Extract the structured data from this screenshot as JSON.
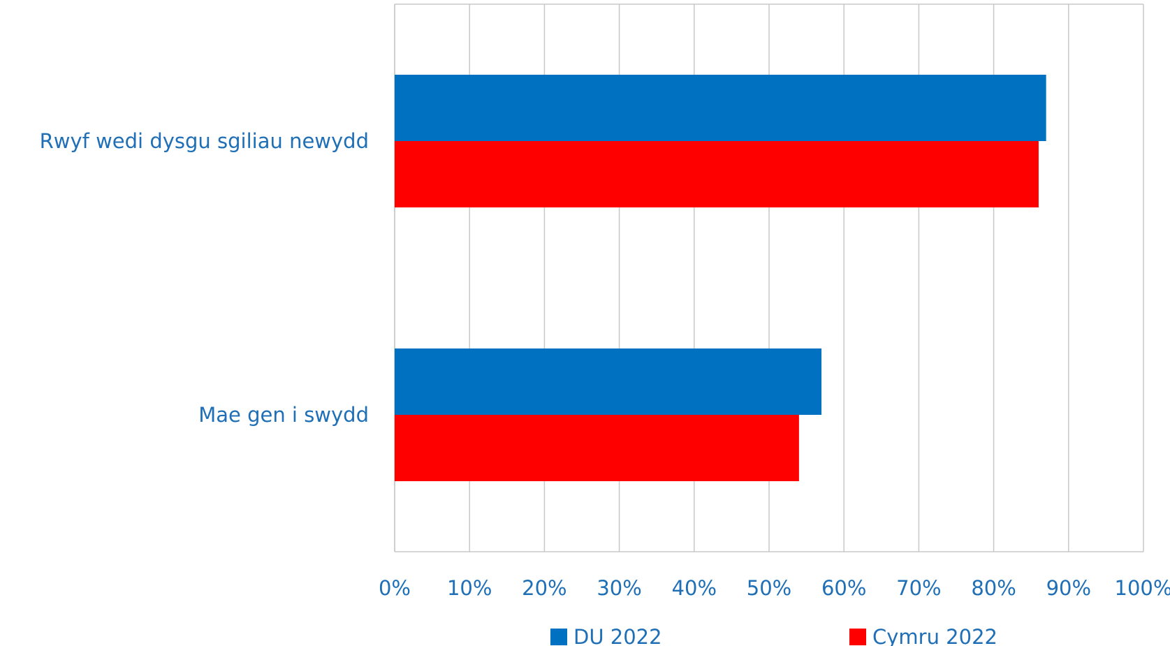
{
  "chart_data": {
    "type": "bar",
    "orientation": "horizontal",
    "categories": [
      "Rwyf wedi dysgu sgiliau newydd",
      "Mae gen i swydd"
    ],
    "series": [
      {
        "name": "DU 2022",
        "color": "#0070c0",
        "values": [
          87,
          57
        ]
      },
      {
        "name": "Cymru 2022",
        "color": "#ff0000",
        "values": [
          86,
          54
        ]
      }
    ],
    "xlim": [
      0,
      100
    ],
    "x_ticks": [
      "0%",
      "10%",
      "20%",
      "30%",
      "40%",
      "50%",
      "60%",
      "70%",
      "80%",
      "90%",
      "100%"
    ],
    "grid": true,
    "legend_position": "bottom"
  }
}
